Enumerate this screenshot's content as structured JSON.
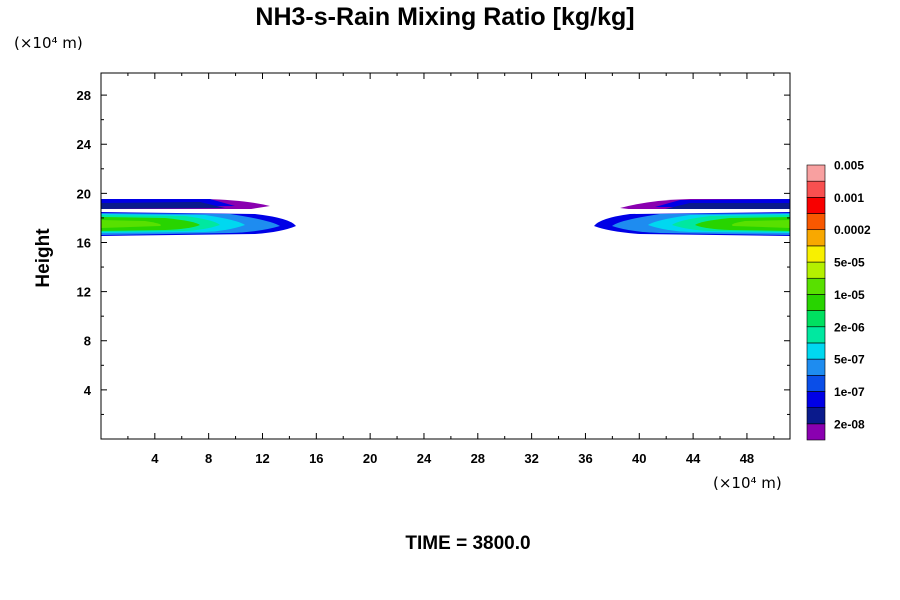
{
  "chart_data": {
    "type": "heatmap",
    "title": "NH3-s-Rain Mixing Ratio [kg/kg]",
    "ylabel": "Height",
    "xlabel": "",
    "x_unit": "(×10⁴ m)",
    "y_unit": "(×10⁴ m)",
    "x_ticks": [
      4,
      8,
      12,
      16,
      20,
      24,
      28,
      32,
      36,
      40,
      44,
      48
    ],
    "y_ticks": [
      4,
      8,
      12,
      16,
      20,
      24,
      28
    ],
    "xlim": [
      0,
      51.2
    ],
    "ylim": [
      0,
      29.8
    ],
    "colorbar": {
      "colors": [
        "#8a00b0",
        "#0a1a8c",
        "#0000e6",
        "#0a4ee8",
        "#1e8cf0",
        "#00d8f0",
        "#00e8a0",
        "#00e060",
        "#28d400",
        "#58e000",
        "#b4f000",
        "#f8f000",
        "#f8a800",
        "#f85800",
        "#f80000",
        "#f85050",
        "#f8a0a0"
      ],
      "labels": [
        "2e-08",
        "1e-07",
        "5e-07",
        "2e-06",
        "1e-05",
        "5e-05",
        "0.0002",
        "0.001",
        "0.005"
      ]
    },
    "features": [
      {
        "region": "left",
        "x_extent": [
          0,
          14.8
        ],
        "y_extent": [
          16.8,
          19.8
        ]
      },
      {
        "region": "right",
        "x_extent": [
          36.2,
          51.2
        ],
        "y_extent": [
          16.8,
          19.8
        ]
      }
    ],
    "time_label": "TIME = 3800.0"
  }
}
